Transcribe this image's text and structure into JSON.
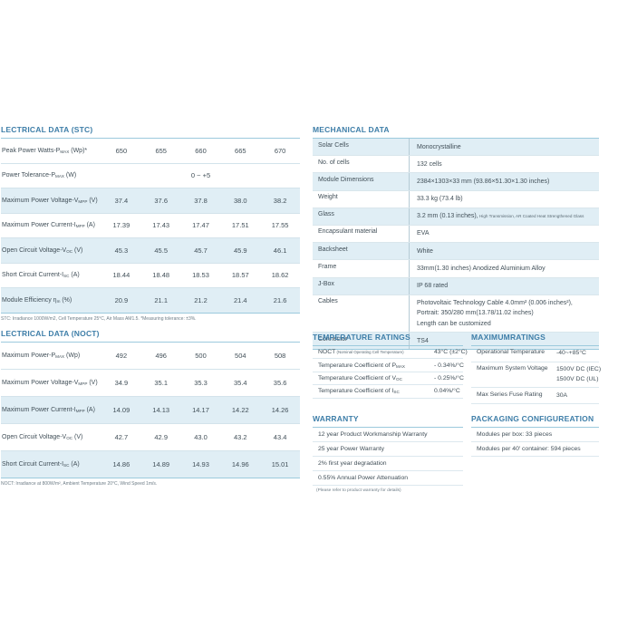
{
  "stc": {
    "title": "LECTRICAL DATA (STC)",
    "rows": [
      {
        "label": {
          "pre": "Peak Power Watts-P",
          "sub": "MAX",
          "post": " (Wp)*"
        },
        "values": [
          "650",
          "655",
          "660",
          "665",
          "670"
        ],
        "shaded": false
      },
      {
        "label": {
          "pre": "Power Tolerance-P",
          "sub": "MAX",
          "post": " (W)"
        },
        "span_value": "0 ~ +5",
        "shaded": false
      },
      {
        "label": {
          "pre": "Maximum Power Voltage-V",
          "sub": "MPP",
          "post": " (V)"
        },
        "values": [
          "37.4",
          "37.6",
          "37.8",
          "38.0",
          "38.2"
        ],
        "shaded": true
      },
      {
        "label": {
          "pre": "Maximum Power Current-I",
          "sub": "MPP",
          "post": " (A)"
        },
        "values": [
          "17.39",
          "17.43",
          "17.47",
          "17.51",
          "17.55"
        ],
        "shaded": false
      },
      {
        "label": {
          "pre": "Open Circuit Voltage-V",
          "sub": "OC",
          "post": " (V)"
        },
        "values": [
          "45.3",
          "45.5",
          "45.7",
          "45.9",
          "46.1"
        ],
        "shaded": true
      },
      {
        "label": {
          "pre": "Short Circuit Current-I",
          "sub": "SC",
          "post": " (A)"
        },
        "values": [
          "18.44",
          "18.48",
          "18.53",
          "18.57",
          "18.62"
        ],
        "shaded": false
      },
      {
        "label": {
          "pre": "Module Efficiency η",
          "sub": "m",
          "post": " (%)"
        },
        "values": [
          "20.9",
          "21.1",
          "21.2",
          "21.4",
          "21.6"
        ],
        "shaded": true
      }
    ],
    "footnote": "STC: Irradiance 1000W/m2, Cell Temperature 25°C, Air Mass AM1.5.  *Measuring tolerance: ±3%."
  },
  "noct": {
    "title": "LECTRICAL DATA (NOCT)",
    "rows": [
      {
        "label": {
          "pre": "Maximum Power-P",
          "sub": "MAX",
          "post": " (Wp)"
        },
        "values": [
          "492",
          "496",
          "500",
          "504",
          "508"
        ],
        "shaded": false
      },
      {
        "label": {
          "pre": "Maximum Power Voltage-V",
          "sub": "MPP",
          "post": " (V)"
        },
        "values": [
          "34.9",
          "35.1",
          "35.3",
          "35.4",
          "35.6"
        ],
        "shaded": false
      },
      {
        "label": {
          "pre": "Maximum Power Current-I",
          "sub": "MPP",
          "post": " (A)"
        },
        "values": [
          "14.09",
          "14.13",
          "14.17",
          "14.22",
          "14.26"
        ],
        "shaded": true
      },
      {
        "label": {
          "pre": "Open Circuit Voltage-V",
          "sub": "OC",
          "post": " (V)"
        },
        "values": [
          "42.7",
          "42.9",
          "43.0",
          "43.2",
          "43.4"
        ],
        "shaded": false
      },
      {
        "label": {
          "pre": "Short Circuit Current-I",
          "sub": "SC",
          "post": " (A)"
        },
        "values": [
          "14.86",
          "14.89",
          "14.93",
          "14.96",
          "15.01"
        ],
        "shaded": true
      }
    ],
    "footnote": "NOCT: Irradiance at 800W/m², Ambient Temperature 20°C, Wind Speed 1m/s."
  },
  "mechanical": {
    "title": "MECHANICAL DATA",
    "rows": [
      {
        "label": "Solar Cells",
        "lines": [
          {
            "text": "Monocrystalline"
          }
        ],
        "shaded": true
      },
      {
        "label": "No. of cells",
        "lines": [
          {
            "text": "132 cells"
          }
        ],
        "shaded": false
      },
      {
        "label": "Module Dimensions",
        "lines": [
          {
            "text": "2384×1303×33 mm (93.86×51.30×1.30 inches)"
          }
        ],
        "shaded": true
      },
      {
        "label": "Weight",
        "lines": [
          {
            "text": "33.3 kg (73.4 lb)"
          }
        ],
        "shaded": false
      },
      {
        "label": "Glass",
        "lines": [
          {
            "text": "3.2 mm (0.13 inches),",
            "small": " High Transmission, AR Coated Heat Strengthened Glass"
          }
        ],
        "shaded": true
      },
      {
        "label": "Encapsulant material",
        "lines": [
          {
            "text": "EVA"
          }
        ],
        "shaded": false
      },
      {
        "label": "Backsheet",
        "lines": [
          {
            "text": "White"
          }
        ],
        "shaded": true
      },
      {
        "label": "Frame",
        "lines": [
          {
            "text": "33mm(1.30 inches)  Anodized  Aluminium Alloy"
          }
        ],
        "shaded": false
      },
      {
        "label": "J-Box",
        "lines": [
          {
            "text": "IP 68 rated"
          }
        ],
        "shaded": true
      },
      {
        "label": "Cables",
        "lines": [
          {
            "text": "Photovoltaic Technology Cable 4.0mm² (0.006 inches²),"
          },
          {
            "text": "Portrait: 350/280 mm(13.78/11.02 inches)"
          },
          {
            "text": "Length can be customized"
          }
        ],
        "shaded": false
      },
      {
        "label": "Connector",
        "lines": [
          {
            "text": "TS4"
          }
        ],
        "shaded": true
      }
    ]
  },
  "temperature": {
    "title": "TEMPERATURE RATINGS",
    "rows": [
      {
        "label": {
          "pre": "NOCT",
          "small": " (Nominal Operating Cell Temperature)"
        },
        "value": "43°C (±2°C)"
      },
      {
        "label": {
          "pre": "Temperature Coefficient of P",
          "sub": "MAX"
        },
        "value": "- 0.34%/°C"
      },
      {
        "label": {
          "pre": "Temperature Coefficient of V",
          "sub": "OC"
        },
        "value": "- 0.25%/°C"
      },
      {
        "label": {
          "pre": "Temperature Coefficient of I",
          "sub": "SC"
        },
        "value": "0.04%/°C"
      }
    ]
  },
  "maximum": {
    "title": "MAXIMUMRATINGS",
    "rows": [
      {
        "label": "Operational Temperature",
        "values": [
          "-40~+85°C"
        ]
      },
      {
        "label": "Maximum System Voltage",
        "values": [
          "1500V DC (IEC)",
          "1500V DC (UL)"
        ]
      },
      {
        "label": "Max Series Fuse Rating",
        "values": [
          "30A"
        ]
      }
    ]
  },
  "warranty": {
    "title": "WARRANTY",
    "items": [
      "12 year Product Workmanship Warranty",
      "25 year Power Warranty",
      "2% first year degradation",
      "0.55% Annual Power Attenuation"
    ],
    "footnote": "(Please refer to product warranty for details)"
  },
  "packaging": {
    "title": "PACKAGING CONFIGUREATION",
    "items": [
      "Modules per box: 33 pieces",
      "Modules per 40' container: 594 pieces"
    ]
  }
}
